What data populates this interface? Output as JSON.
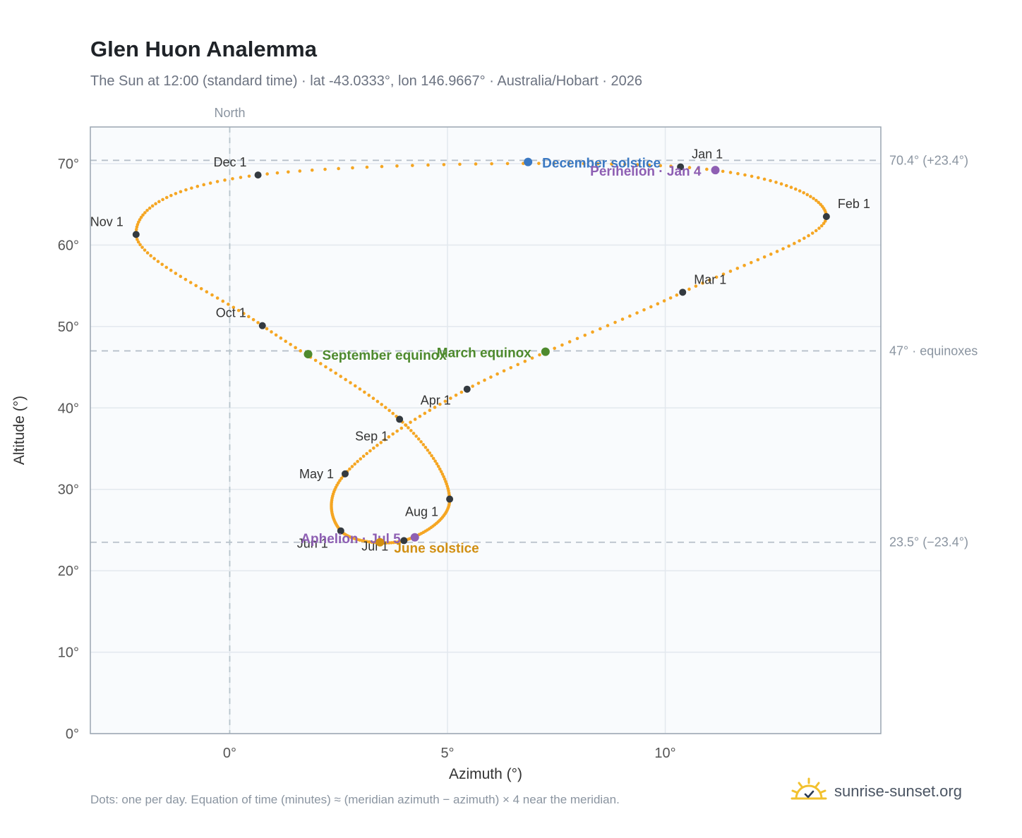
{
  "header": {
    "title": "Glen Huon Analemma",
    "subtitle": "The Sun at 12:00 (standard time) · lat -43.0333°, lon 146.9667° · Australia/Hobart · 2026"
  },
  "footer": {
    "note": "Dots: one per day. Equation of time (minutes) ≈ (meridian azimuth − azimuth) × 4 near the meridian.",
    "brand": "sunrise-sunset.org"
  },
  "colors": {
    "curve": "#f5a623",
    "month_dot": "#343a40",
    "solstice_dec": "#3a78c2",
    "equinox": "#4e8a2e",
    "perihelion": "#8e5fb3",
    "solstice_jun": "#d18f12",
    "grid": "#e3e8ee",
    "plot_bg": "#f9fbfd",
    "axis": "#9aa5b1",
    "brand_sun": "#f2c12e"
  },
  "icons": {
    "brand": "sun-logo-icon"
  },
  "chart_data": {
    "type": "scatter",
    "xlabel": "Azimuth (°)",
    "ylabel": "Altitude (°)",
    "xlim": [
      -3.2,
      14.95
    ],
    "ylim": [
      0,
      74.5
    ],
    "xticks": [
      0,
      5,
      10
    ],
    "xtick_labels": [
      "0°",
      "5°",
      "10°"
    ],
    "yticks": [
      0,
      10,
      20,
      30,
      40,
      50,
      60,
      70
    ],
    "ytick_labels": [
      "0°",
      "10°",
      "20°",
      "30°",
      "40°",
      "50°",
      "60°",
      "70°"
    ],
    "grid": true,
    "north": {
      "label": "North",
      "x": 0
    },
    "reference_lines": [
      {
        "y": 70.4,
        "label": "70.4° (+23.4°)"
      },
      {
        "y": 47,
        "label": "47° · equinoxes"
      },
      {
        "y": 23.5,
        "label": "23.5° (−23.4°)"
      }
    ],
    "months": [
      {
        "label": "Jan 1",
        "x": 10.35,
        "y": 69.6
      },
      {
        "label": "Feb 1",
        "x": 13.7,
        "y": 63.5
      },
      {
        "label": "Mar 1",
        "x": 10.4,
        "y": 54.2
      },
      {
        "label": "Apr 1",
        "x": 5.45,
        "y": 42.3
      },
      {
        "label": "May 1",
        "x": 2.65,
        "y": 31.9
      },
      {
        "label": "Jun 1",
        "x": 2.55,
        "y": 24.9
      },
      {
        "label": "Jul 1",
        "x": 4.0,
        "y": 23.7
      },
      {
        "label": "Aug 1",
        "x": 5.05,
        "y": 28.8
      },
      {
        "label": "Sep 1",
        "x": 3.9,
        "y": 38.6
      },
      {
        "label": "Oct 1",
        "x": 0.75,
        "y": 50.1
      },
      {
        "label": "Nov 1",
        "x": -2.15,
        "y": 61.3
      },
      {
        "label": "Dec 1",
        "x": 0.65,
        "y": 68.6
      }
    ],
    "events": [
      {
        "label": "December solstice",
        "x": 6.85,
        "y": 70.2,
        "color": "#3a78c2"
      },
      {
        "label": "Perihelion · Jan 4",
        "x": 11.15,
        "y": 69.2,
        "color": "#8e5fb3"
      },
      {
        "label": "March equinox",
        "x": 7.25,
        "y": 46.9,
        "color": "#4e8a2e"
      },
      {
        "label": "September equinox",
        "x": 1.8,
        "y": 46.6,
        "color": "#4e8a2e"
      },
      {
        "label": "Aphelion · Jul 5",
        "x": 4.25,
        "y": 24.1,
        "color": "#8e5fb3"
      },
      {
        "label": "June solstice",
        "x": 3.45,
        "y": 23.5,
        "color": "#d18f12"
      }
    ]
  }
}
